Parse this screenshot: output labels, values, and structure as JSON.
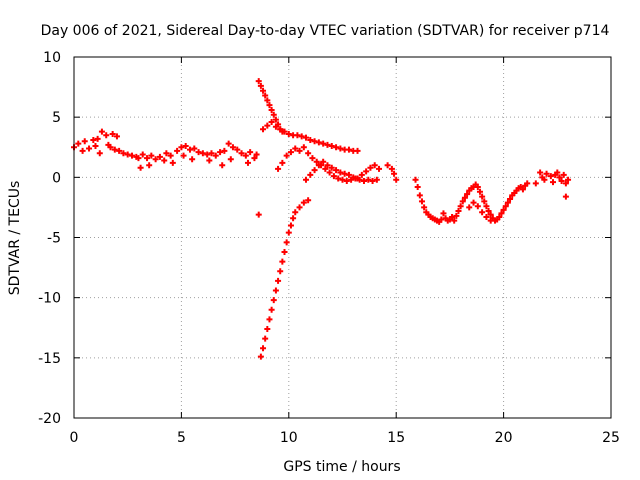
{
  "chart_data": {
    "type": "scatter",
    "title": "Day 006 of 2021, Sidereal Day-to-day VTEC variation (SDTVAR) for receiver p714",
    "xlabel": "GPS time / hours",
    "ylabel": "SDTVAR / TECUs",
    "xlim": [
      0,
      25
    ],
    "ylim": [
      -20,
      10
    ],
    "xticks": [
      "0",
      "5",
      "10",
      "15",
      "20",
      "25"
    ],
    "yticks": [
      "10",
      "5",
      "0",
      "-5",
      "-10",
      "-15",
      "-20"
    ],
    "grid": true,
    "marker": "plus",
    "color": "#ff0000",
    "series": [
      {
        "points": [
          [
            0.0,
            2.5
          ],
          [
            0.2,
            2.8
          ],
          [
            0.4,
            2.2
          ],
          [
            0.5,
            3.0
          ],
          [
            0.7,
            2.4
          ],
          [
            0.9,
            3.1
          ],
          [
            1.0,
            2.6
          ],
          [
            1.1,
            3.2
          ],
          [
            1.2,
            2.0
          ],
          [
            1.3,
            3.8
          ],
          [
            1.5,
            3.5
          ],
          [
            1.6,
            2.7
          ],
          [
            1.7,
            2.5
          ],
          [
            1.8,
            3.6
          ],
          [
            1.9,
            2.3
          ],
          [
            2.0,
            3.4
          ],
          [
            2.1,
            2.2
          ],
          [
            2.3,
            2.0
          ],
          [
            2.5,
            1.9
          ],
          [
            2.7,
            1.8
          ],
          [
            2.9,
            1.7
          ],
          [
            3.0,
            1.6
          ],
          [
            3.1,
            0.8
          ],
          [
            3.2,
            1.9
          ],
          [
            3.4,
            1.6
          ],
          [
            3.5,
            1.0
          ],
          [
            3.6,
            1.8
          ],
          [
            3.8,
            1.5
          ],
          [
            4.0,
            1.7
          ],
          [
            4.2,
            1.4
          ],
          [
            4.3,
            2.0
          ],
          [
            4.5,
            1.8
          ],
          [
            4.6,
            1.2
          ],
          [
            4.8,
            2.2
          ],
          [
            5.0,
            2.5
          ],
          [
            5.1,
            1.8
          ],
          [
            5.2,
            2.6
          ],
          [
            5.4,
            2.3
          ],
          [
            5.5,
            1.5
          ],
          [
            5.6,
            2.4
          ],
          [
            5.8,
            2.1
          ],
          [
            6.0,
            2.0
          ],
          [
            6.2,
            1.9
          ],
          [
            6.3,
            1.4
          ],
          [
            6.4,
            2.0
          ],
          [
            6.6,
            1.8
          ],
          [
            6.8,
            2.1
          ],
          [
            6.9,
            1.0
          ],
          [
            7.0,
            2.2
          ],
          [
            7.2,
            2.8
          ],
          [
            7.3,
            1.5
          ],
          [
            7.4,
            2.5
          ],
          [
            7.6,
            2.3
          ],
          [
            7.8,
            2.0
          ],
          [
            8.0,
            1.8
          ],
          [
            8.1,
            1.2
          ],
          [
            8.2,
            2.1
          ],
          [
            8.4,
            1.6
          ],
          [
            8.5,
            1.9
          ]
        ]
      },
      {
        "points": [
          [
            8.6,
            -3.1
          ],
          [
            8.6,
            8.0
          ],
          [
            8.7,
            7.6
          ],
          [
            8.8,
            7.2
          ],
          [
            8.9,
            6.8
          ],
          [
            9.0,
            6.4
          ],
          [
            9.1,
            6.0
          ],
          [
            9.2,
            5.6
          ],
          [
            9.3,
            5.2
          ],
          [
            9.4,
            4.8
          ],
          [
            9.5,
            4.4
          ],
          [
            9.6,
            4.0
          ],
          [
            9.7,
            3.8
          ],
          [
            8.7,
            -14.9
          ],
          [
            8.8,
            -14.2
          ],
          [
            8.9,
            -13.4
          ],
          [
            9.0,
            -12.6
          ],
          [
            9.1,
            -11.8
          ],
          [
            9.2,
            -11.0
          ],
          [
            9.3,
            -10.2
          ],
          [
            9.4,
            -9.4
          ],
          [
            9.5,
            -8.6
          ],
          [
            9.6,
            -7.8
          ],
          [
            9.7,
            -7.0
          ],
          [
            9.8,
            -6.2
          ],
          [
            9.9,
            -5.4
          ],
          [
            10.0,
            -4.6
          ],
          [
            10.1,
            -4.0
          ],
          [
            10.2,
            -3.4
          ],
          [
            10.3,
            -2.9
          ],
          [
            10.5,
            -2.5
          ],
          [
            10.7,
            -2.1
          ],
          [
            10.9,
            -1.9
          ]
        ]
      },
      {
        "points": [
          [
            8.8,
            4.0
          ],
          [
            9.0,
            4.3
          ],
          [
            9.2,
            4.6
          ],
          [
            9.4,
            4.2
          ],
          [
            9.6,
            4.0
          ],
          [
            9.8,
            3.8
          ],
          [
            10.0,
            3.6
          ],
          [
            10.2,
            3.5
          ],
          [
            10.4,
            3.5
          ],
          [
            10.6,
            3.4
          ],
          [
            10.8,
            3.3
          ],
          [
            11.0,
            3.1
          ],
          [
            11.2,
            3.0
          ],
          [
            11.4,
            2.9
          ],
          [
            11.6,
            2.8
          ],
          [
            11.8,
            2.7
          ],
          [
            12.0,
            2.6
          ],
          [
            12.2,
            2.5
          ],
          [
            12.4,
            2.4
          ],
          [
            12.6,
            2.3
          ],
          [
            12.8,
            2.3
          ],
          [
            13.0,
            2.2
          ],
          [
            13.2,
            2.2
          ],
          [
            9.5,
            0.7
          ],
          [
            9.7,
            1.2
          ],
          [
            9.9,
            1.8
          ],
          [
            10.1,
            2.1
          ],
          [
            10.3,
            2.4
          ],
          [
            10.5,
            2.2
          ],
          [
            10.7,
            2.5
          ],
          [
            10.9,
            2.0
          ],
          [
            11.1,
            1.6
          ],
          [
            11.3,
            1.3
          ],
          [
            11.5,
            1.0
          ],
          [
            11.7,
            0.7
          ],
          [
            11.9,
            0.4
          ],
          [
            12.1,
            0.1
          ],
          [
            12.3,
            -0.1
          ],
          [
            12.5,
            -0.2
          ],
          [
            12.7,
            -0.3
          ],
          [
            12.9,
            -0.2
          ],
          [
            13.1,
            -0.1
          ],
          [
            13.3,
            -0.2
          ],
          [
            13.5,
            -0.3
          ],
          [
            13.7,
            -0.2
          ],
          [
            13.9,
            -0.3
          ],
          [
            14.1,
            -0.2
          ],
          [
            10.8,
            -0.2
          ],
          [
            11.0,
            0.2
          ],
          [
            11.2,
            0.6
          ],
          [
            11.4,
            1.0
          ],
          [
            11.6,
            1.3
          ],
          [
            11.8,
            1.0
          ],
          [
            12.0,
            0.8
          ],
          [
            12.2,
            0.6
          ],
          [
            12.4,
            0.4
          ],
          [
            12.6,
            0.3
          ],
          [
            12.8,
            0.2
          ],
          [
            13.0,
            0.0
          ],
          [
            13.2,
            -0.1
          ],
          [
            13.4,
            0.2
          ],
          [
            13.6,
            0.5
          ],
          [
            13.8,
            0.8
          ],
          [
            14.0,
            1.0
          ],
          [
            14.2,
            0.7
          ],
          [
            14.6,
            1.0
          ],
          [
            14.8,
            0.7
          ],
          [
            15.0,
            -0.2
          ],
          [
            14.9,
            0.3
          ]
        ]
      },
      {
        "points": [
          [
            15.9,
            -0.2
          ],
          [
            16.0,
            -0.8
          ],
          [
            16.1,
            -1.5
          ],
          [
            16.2,
            -2.0
          ],
          [
            16.3,
            -2.5
          ],
          [
            16.4,
            -2.9
          ],
          [
            16.5,
            -3.1
          ],
          [
            16.6,
            -3.3
          ],
          [
            16.7,
            -3.4
          ],
          [
            16.8,
            -3.5
          ],
          [
            16.9,
            -3.6
          ],
          [
            17.0,
            -3.7
          ],
          [
            17.1,
            -3.5
          ],
          [
            17.2,
            -3.0
          ],
          [
            17.3,
            -3.4
          ],
          [
            17.4,
            -3.6
          ],
          [
            17.5,
            -3.5
          ],
          [
            17.6,
            -3.3
          ],
          [
            17.7,
            -3.6
          ],
          [
            17.8,
            -3.2
          ],
          [
            17.9,
            -2.8
          ],
          [
            18.0,
            -2.4
          ],
          [
            18.1,
            -2.0
          ],
          [
            18.2,
            -1.7
          ],
          [
            18.3,
            -1.4
          ],
          [
            18.4,
            -1.1
          ],
          [
            18.5,
            -0.9
          ],
          [
            18.6,
            -0.8
          ],
          [
            18.7,
            -0.6
          ],
          [
            18.8,
            -0.8
          ],
          [
            18.9,
            -1.2
          ],
          [
            19.0,
            -1.6
          ],
          [
            19.1,
            -2.0
          ],
          [
            19.2,
            -2.4
          ],
          [
            19.3,
            -2.8
          ],
          [
            19.4,
            -3.1
          ],
          [
            19.5,
            -3.4
          ],
          [
            19.6,
            -3.6
          ],
          [
            19.7,
            -3.5
          ],
          [
            19.8,
            -3.3
          ],
          [
            19.9,
            -3.0
          ],
          [
            20.0,
            -2.7
          ],
          [
            20.1,
            -2.4
          ],
          [
            20.2,
            -2.1
          ],
          [
            20.3,
            -1.8
          ],
          [
            20.4,
            -1.5
          ],
          [
            20.5,
            -1.3
          ],
          [
            20.6,
            -1.1
          ],
          [
            20.7,
            -0.9
          ],
          [
            20.8,
            -0.8
          ],
          [
            20.9,
            -1.0
          ],
          [
            21.0,
            -0.7
          ],
          [
            21.1,
            -0.5
          ],
          [
            18.4,
            -2.5
          ],
          [
            18.6,
            -2.1
          ],
          [
            18.8,
            -2.4
          ],
          [
            19.0,
            -2.9
          ],
          [
            19.2,
            -3.3
          ],
          [
            19.4,
            -3.6
          ]
        ]
      },
      {
        "points": [
          [
            21.5,
            -0.5
          ],
          [
            21.7,
            0.4
          ],
          [
            21.8,
            0.0
          ],
          [
            21.9,
            -0.2
          ],
          [
            22.0,
            0.3
          ],
          [
            22.2,
            0.1
          ],
          [
            22.3,
            -0.4
          ],
          [
            22.4,
            0.2
          ],
          [
            22.5,
            0.4
          ],
          [
            22.6,
            0.0
          ],
          [
            22.7,
            -0.3
          ],
          [
            22.8,
            0.2
          ],
          [
            22.9,
            -0.5
          ],
          [
            23.0,
            -0.2
          ],
          [
            22.9,
            -1.6
          ]
        ]
      }
    ]
  }
}
